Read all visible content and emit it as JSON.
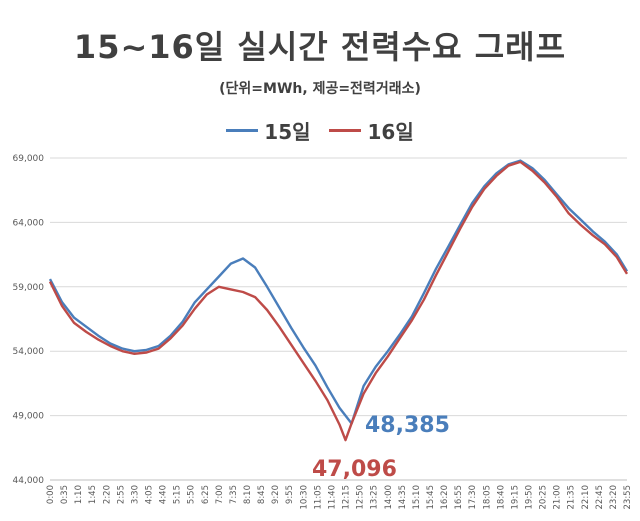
{
  "title": "15~16일 실시간 전력수요 그래프",
  "subtitle": "(단위=MWh, 제공=전력거래소)",
  "legend": [
    {
      "name": "15일",
      "color": "#4a7ebb"
    },
    {
      "name": "16일",
      "color": "#be4b48"
    }
  ],
  "annotations": {
    "min15": "48,385",
    "min16": "47,096"
  },
  "chart_data": {
    "type": "line",
    "title": "15~16일 실시간 전력수요 그래프",
    "subtitle": "(단위=MWh, 제공=전력거래소)",
    "unit": "MWh",
    "xlabel": "",
    "ylabel": "",
    "ylim": [
      44000,
      69000
    ],
    "yticks": [
      44000,
      49000,
      54000,
      59000,
      64000,
      69000
    ],
    "ytick_labels": [
      "44,000",
      "49,000",
      "54,000",
      "59,000",
      "64,000",
      "69,000"
    ],
    "xtick_labels": [
      "0:00",
      "0:35",
      "1:10",
      "1:45",
      "2:20",
      "2:55",
      "3:30",
      "4:05",
      "4:40",
      "5:15",
      "5:50",
      "6:25",
      "7:00",
      "7:35",
      "8:10",
      "8:45",
      "9:20",
      "9:55",
      "10:30",
      "11:05",
      "11:40",
      "12:15",
      "12:50",
      "13:25",
      "14:00",
      "14:35",
      "15:10",
      "15:45",
      "16:20",
      "16:55",
      "17:30",
      "18:05",
      "18:40",
      "19:15",
      "19:50",
      "20:25",
      "21:00",
      "21:35",
      "22:10",
      "22:45",
      "23:20",
      "23:55"
    ],
    "grid": "horizontal",
    "legend_position": "top",
    "series": [
      {
        "name": "15일",
        "color": "#4a7ebb",
        "points": [
          [
            "0:00",
            59600
          ],
          [
            "0:30",
            57800
          ],
          [
            "1:00",
            56600
          ],
          [
            "1:30",
            55900
          ],
          [
            "2:00",
            55200
          ],
          [
            "2:30",
            54600
          ],
          [
            "3:00",
            54200
          ],
          [
            "3:30",
            54000
          ],
          [
            "4:00",
            54100
          ],
          [
            "4:30",
            54400
          ],
          [
            "5:00",
            55200
          ],
          [
            "5:30",
            56300
          ],
          [
            "6:00",
            57800
          ],
          [
            "6:30",
            58800
          ],
          [
            "7:00",
            59800
          ],
          [
            "7:30",
            60800
          ],
          [
            "8:00",
            61200
          ],
          [
            "8:30",
            60500
          ],
          [
            "9:00",
            59000
          ],
          [
            "9:30",
            57400
          ],
          [
            "10:00",
            55800
          ],
          [
            "10:30",
            54300
          ],
          [
            "11:00",
            52900
          ],
          [
            "11:30",
            51200
          ],
          [
            "12:00",
            49600
          ],
          [
            "12:30",
            48385
          ],
          [
            "13:00",
            51300
          ],
          [
            "13:30",
            52800
          ],
          [
            "14:00",
            54000
          ],
          [
            "14:30",
            55300
          ],
          [
            "15:00",
            56700
          ],
          [
            "15:30",
            58500
          ],
          [
            "16:00",
            60400
          ],
          [
            "16:30",
            62100
          ],
          [
            "17:00",
            63800
          ],
          [
            "17:30",
            65500
          ],
          [
            "18:00",
            66800
          ],
          [
            "18:30",
            67800
          ],
          [
            "19:00",
            68500
          ],
          [
            "19:30",
            68800
          ],
          [
            "20:00",
            68200
          ],
          [
            "20:30",
            67300
          ],
          [
            "21:00",
            66200
          ],
          [
            "21:30",
            65100
          ],
          [
            "22:00",
            64200
          ],
          [
            "22:30",
            63300
          ],
          [
            "23:00",
            62500
          ],
          [
            "23:30",
            61500
          ],
          [
            "23:55",
            60200
          ]
        ]
      },
      {
        "name": "16일",
        "color": "#be4b48",
        "points": [
          [
            "0:00",
            59400
          ],
          [
            "0:30",
            57500
          ],
          [
            "1:00",
            56200
          ],
          [
            "1:30",
            55500
          ],
          [
            "2:00",
            54900
          ],
          [
            "2:30",
            54400
          ],
          [
            "3:00",
            54000
          ],
          [
            "3:30",
            53800
          ],
          [
            "4:00",
            53900
          ],
          [
            "4:30",
            54200
          ],
          [
            "5:00",
            55000
          ],
          [
            "5:30",
            56000
          ],
          [
            "6:00",
            57300
          ],
          [
            "6:30",
            58400
          ],
          [
            "7:00",
            59000
          ],
          [
            "7:30",
            58800
          ],
          [
            "8:00",
            58600
          ],
          [
            "8:30",
            58200
          ],
          [
            "9:00",
            57200
          ],
          [
            "9:30",
            55900
          ],
          [
            "10:00",
            54500
          ],
          [
            "10:30",
            53100
          ],
          [
            "11:00",
            51700
          ],
          [
            "11:30",
            50200
          ],
          [
            "12:00",
            48300
          ],
          [
            "12:15",
            47096
          ],
          [
            "12:30",
            48400
          ],
          [
            "13:00",
            50700
          ],
          [
            "13:30",
            52300
          ],
          [
            "14:00",
            53600
          ],
          [
            "14:30",
            55000
          ],
          [
            "15:00",
            56400
          ],
          [
            "15:30",
            58000
          ],
          [
            "16:00",
            59900
          ],
          [
            "16:30",
            61700
          ],
          [
            "17:00",
            63500
          ],
          [
            "17:30",
            65200
          ],
          [
            "18:00",
            66600
          ],
          [
            "18:30",
            67600
          ],
          [
            "19:00",
            68400
          ],
          [
            "19:30",
            68700
          ],
          [
            "20:00",
            68000
          ],
          [
            "20:30",
            67100
          ],
          [
            "21:00",
            66000
          ],
          [
            "21:30",
            64700
          ],
          [
            "22:00",
            63800
          ],
          [
            "22:30",
            63000
          ],
          [
            "23:00",
            62300
          ],
          [
            "23:30",
            61300
          ],
          [
            "23:55",
            60000
          ]
        ]
      }
    ]
  }
}
